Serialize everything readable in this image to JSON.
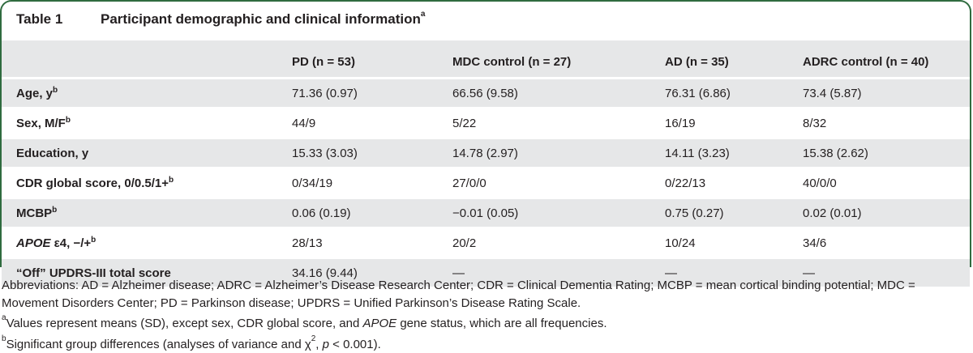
{
  "table": {
    "number": "Table 1",
    "title": "Participant demographic and clinical information",
    "title_sup": "a",
    "columns": [
      "",
      "PD (n = 53)",
      "MDC control (n = 27)",
      "AD (n = 35)",
      "ADRC control (n = 40)"
    ],
    "rows": [
      {
        "label": "Age, y",
        "sup": "b",
        "cells": [
          "71.36 (0.97)",
          "66.56 (9.58)",
          "76.31 (6.86)",
          "73.4 (5.87)"
        ]
      },
      {
        "label": "Sex, M/F",
        "sup": "b",
        "cells": [
          "44/9",
          "5/22",
          "16/19",
          "8/32"
        ]
      },
      {
        "label": "Education, y",
        "sup": "",
        "cells": [
          "15.33 (3.03)",
          "14.78 (2.97)",
          "14.11 (3.23)",
          "15.38 (2.62)"
        ]
      },
      {
        "label": "CDR global score, 0/0.5/1+",
        "sup": "b",
        "cells": [
          "0/34/19",
          "27/0/0",
          "0/22/13",
          "40/0/0"
        ]
      },
      {
        "label": "MCBP",
        "sup": "b",
        "cells": [
          "0.06 (0.19)",
          "−0.01 (0.05)",
          "0.75 (0.27)",
          "0.02 (0.01)"
        ]
      },
      {
        "label_italic": "APOE",
        "label": " ε4, −/+",
        "sup": "b",
        "cells": [
          "28/13",
          "20/2",
          "10/24",
          "34/6"
        ]
      },
      {
        "label": "“Off” UPDRS-III total score",
        "sup": "",
        "cells": [
          "34.16 (9.44)",
          "—",
          "—",
          "—"
        ]
      }
    ]
  },
  "footnotes": {
    "abbreviations": "Abbreviations: AD = Alzheimer disease; ADRC = Alzheimer’s Disease Research Center; CDR = Clinical Dementia Rating; MCBP = mean cortical binding potential; MDC = Movement Disorders Center; PD = Parkinson disease; UPDRS = Unified Parkinson’s Disease Rating Scale.",
    "a_mark": "a",
    "a_text_1": "Values represent means (SD), except sex, CDR global score, and ",
    "a_text_italic": "APOE",
    "a_text_2": " gene status, which are all frequencies.",
    "b_mark": "b",
    "b_text_1": "Significant group differences (analyses of variance and χ",
    "b_text_sup": "2",
    "b_text_2": ", ",
    "b_text_italic": "p",
    "b_text_3": " < 0.001)."
  },
  "colors": {
    "border": "#2f6b3f",
    "shade": "#e6e7e8",
    "text": "#231f20"
  }
}
